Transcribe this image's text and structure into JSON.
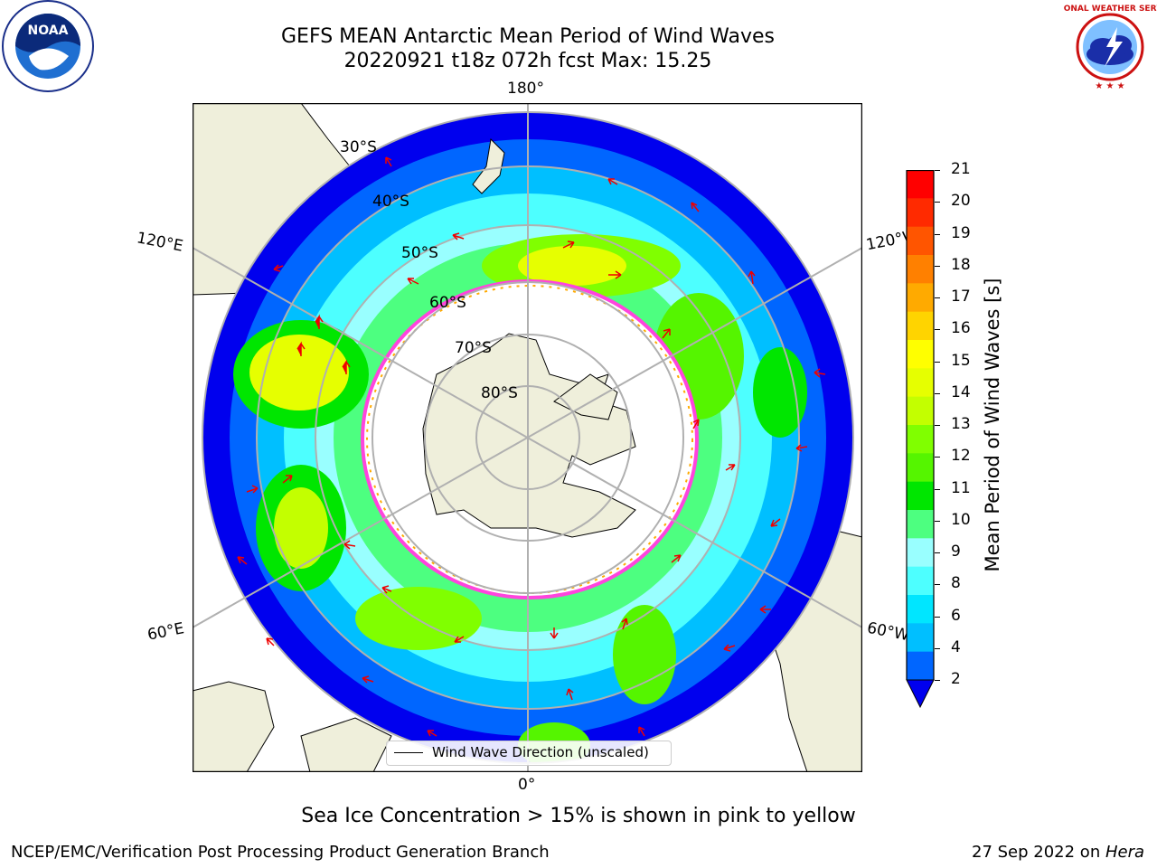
{
  "header": {
    "title_line1": "GEFS MEAN Antarctic Mean Period of Wind Waves",
    "title_line2": "20220921 t18z 072h fcst   Max: 15.25"
  },
  "logos": {
    "noaa_text": "NOAA",
    "nws_text": "NATIONAL WEATHER SERVICE"
  },
  "map": {
    "longitude_labels": [
      "180°",
      "120°E",
      "120°W",
      "60°E",
      "60°W",
      "0°"
    ],
    "latitude_labels": [
      "30°S",
      "40°S",
      "50°S",
      "60°S",
      "70°S",
      "80°S"
    ],
    "legend_label": "Wind Wave Direction (unscaled)"
  },
  "colorbar": {
    "label": "Mean Period of Wind Waves [s]",
    "ticks": [
      "21",
      "20",
      "19",
      "18",
      "17",
      "16",
      "15",
      "14",
      "13",
      "12",
      "11",
      "10",
      "9",
      "8",
      "6",
      "4",
      "2"
    ],
    "colors": [
      "#ff0000",
      "#ff2a00",
      "#ff5500",
      "#ff8000",
      "#ffaa00",
      "#ffd400",
      "#ffff00",
      "#e6ff00",
      "#c3ff00",
      "#80ff00",
      "#55f500",
      "#00e600",
      "#4dff80",
      "#99ffff",
      "#4dffff",
      "#00e6ff",
      "#00bfff",
      "#0066ff"
    ],
    "extend_color": "#0000ee"
  },
  "notes": {
    "sea_ice": "Sea Ice Concentration > 15% is shown in pink to yellow"
  },
  "footer": {
    "left": "NCEP/EMC/Verification Post Processing Product Generation Branch",
    "right_date": "27 Sep 2022 on ",
    "right_host": "Hera"
  }
}
